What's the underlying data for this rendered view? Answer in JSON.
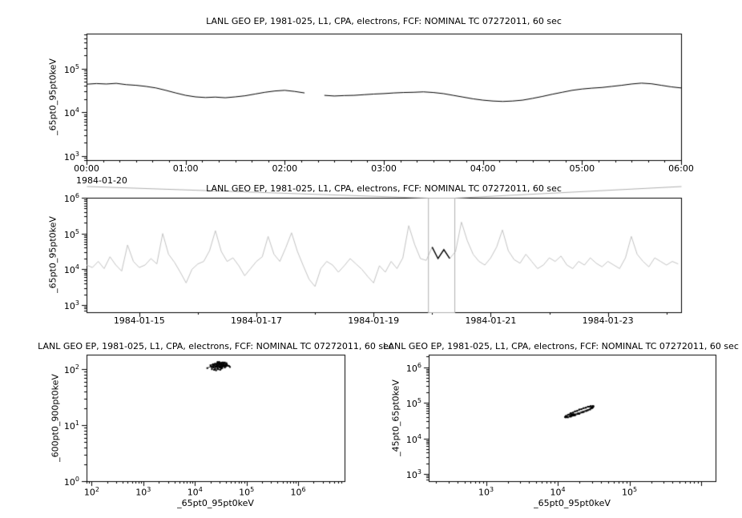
{
  "page": {
    "background": "#ffffff",
    "frame_color": "#000000",
    "context_line_color": "#c4c4c4",
    "selection_color": "#b0b0b0"
  },
  "chart_data": [
    {
      "id": "zoom-timeseries",
      "type": "line",
      "title": "LANL GEO EP, 1981-025, L1, CPA, electrons, FCF: NOMINAL TC 07272011, 60 sec",
      "ylabel": "_65pt0_95pt0keV",
      "y_scale": "log10",
      "x_scale": "hours",
      "y_range": [
        2.9,
        5.8
      ],
      "y_ticks_exp": [
        3,
        4,
        5
      ],
      "x_range": [
        0,
        6
      ],
      "x_minor_step": 0.1666667,
      "x_date_label": "1984-01-20",
      "x_ticks": [
        {
          "v": 0,
          "label": "00:00"
        },
        {
          "v": 1,
          "label": "01:00"
        },
        {
          "v": 2,
          "label": "02:00"
        },
        {
          "v": 3,
          "label": "03:00"
        },
        {
          "v": 4,
          "label": "04:00"
        },
        {
          "v": 5,
          "label": "05:00"
        },
        {
          "v": 6,
          "label": "06:00"
        }
      ],
      "line_color": "#000000",
      "series": {
        "x_start": 0.0,
        "x_step": 0.1,
        "log_values": [
          4.64,
          4.655,
          4.645,
          4.66,
          4.63,
          4.615,
          4.59,
          4.555,
          4.5,
          4.44,
          4.385,
          4.35,
          4.335,
          4.345,
          4.33,
          4.35,
          4.375,
          4.415,
          4.455,
          4.485,
          4.5,
          4.475,
          4.44,
          null,
          4.385,
          4.37,
          4.38,
          4.385,
          4.4,
          4.415,
          4.425,
          4.44,
          4.45,
          4.455,
          4.465,
          4.45,
          4.425,
          4.385,
          4.345,
          4.305,
          4.275,
          4.255,
          4.245,
          4.255,
          4.275,
          4.315,
          4.36,
          4.41,
          4.455,
          4.5,
          4.53,
          4.55,
          4.565,
          4.59,
          4.615,
          4.645,
          4.665,
          4.65,
          4.615,
          4.58,
          4.555
        ]
      }
    },
    {
      "id": "context-timeseries",
      "type": "line",
      "title": "LANL GEO EP, 1981-025, L1, CPA, electrons, FCF: NOMINAL TC 07272011, 60 sec",
      "ylabel": "_65pt0_95pt0keV",
      "y_scale": "log10",
      "x_scale": "days",
      "y_range": [
        2.8,
        6.0
      ],
      "y_ticks_exp": [
        3,
        4,
        5,
        6
      ],
      "x_range": [
        14.1,
        24.25
      ],
      "x_minor_step": 1,
      "x_ticks": [
        {
          "v": 15,
          "label": "1984-01-15"
        },
        {
          "v": 17,
          "label": "1984-01-17"
        },
        {
          "v": 19,
          "label": "1984-01-19"
        },
        {
          "v": 21,
          "label": "1984-01-21"
        },
        {
          "v": 23,
          "label": "1984-01-23"
        }
      ],
      "line_color": "#c4c4c4",
      "highlight_color": "#000000",
      "highlight_day_range": [
        19.95,
        20.35
      ],
      "selection_day_range": [
        19.93,
        20.38
      ],
      "series": {
        "x_start": 14.1,
        "x_step": 0.1,
        "log_values": [
          4.12,
          4.05,
          4.22,
          4.02,
          4.35,
          4.12,
          3.95,
          4.68,
          4.22,
          4.05,
          4.12,
          4.3,
          4.15,
          5.0,
          4.42,
          4.2,
          3.92,
          3.62,
          4.0,
          4.15,
          4.22,
          4.52,
          5.08,
          4.5,
          4.22,
          4.32,
          4.1,
          3.82,
          4.02,
          4.22,
          4.35,
          4.92,
          4.42,
          4.22,
          4.6,
          5.02,
          4.5,
          4.1,
          3.72,
          3.52,
          4.02,
          4.22,
          4.12,
          3.92,
          4.1,
          4.3,
          4.15,
          4.0,
          3.8,
          3.62,
          4.1,
          3.92,
          4.22,
          4.02,
          4.32,
          5.22,
          4.7,
          4.3,
          4.25,
          4.62,
          4.3,
          4.55,
          4.3,
          4.5,
          5.32,
          4.8,
          4.42,
          4.22,
          4.12,
          4.32,
          4.62,
          5.1,
          4.52,
          4.27,
          4.17,
          4.42,
          4.22,
          4.02,
          4.12,
          4.32,
          4.22,
          4.37,
          4.12,
          4.02,
          4.22,
          4.12,
          4.32,
          4.17,
          4.07,
          4.22,
          4.12,
          4.02,
          4.32,
          4.92,
          4.42,
          4.22,
          4.07,
          4.32,
          4.22,
          4.12,
          4.22,
          4.15
        ]
      }
    },
    {
      "id": "scatter-600-900",
      "type": "scatter",
      "title": "LANL GEO EP, 1981-025, L1, CPA, electrons, FCF: NOMINAL TC 07272011, 60 sec",
      "xlabel": "_65pt0_95pt0keV",
      "ylabel": "_600pt0_900pt0keV",
      "x_scale": "log10",
      "y_scale": "log10",
      "x_range": [
        1.9,
        6.9
      ],
      "x_ticks_exp": [
        2,
        3,
        4,
        5,
        6
      ],
      "y_range": [
        0,
        2.26
      ],
      "y_ticks_exp": [
        0,
        1,
        2
      ],
      "connect": true,
      "points_log10": [
        [
          4.24,
          2.02
        ],
        [
          4.31,
          2.05
        ],
        [
          4.33,
          2.0
        ],
        [
          4.35,
          2.06
        ],
        [
          4.36,
          2.03
        ],
        [
          4.38,
          2.07
        ],
        [
          4.39,
          2.01
        ],
        [
          4.4,
          2.05
        ],
        [
          4.41,
          2.09
        ],
        [
          4.42,
          2.04
        ],
        [
          4.43,
          2.07
        ],
        [
          4.44,
          2.02
        ],
        [
          4.45,
          2.08
        ],
        [
          4.46,
          2.05
        ],
        [
          4.47,
          2.1
        ],
        [
          4.48,
          2.04
        ],
        [
          4.49,
          2.07
        ],
        [
          4.5,
          2.03
        ],
        [
          4.51,
          2.09
        ],
        [
          4.52,
          2.06
        ],
        [
          4.53,
          2.02
        ],
        [
          4.54,
          2.08
        ],
        [
          4.55,
          2.05
        ],
        [
          4.56,
          2.1
        ],
        [
          4.57,
          2.06
        ],
        [
          4.58,
          2.03
        ],
        [
          4.59,
          2.08
        ],
        [
          4.6,
          2.05
        ],
        [
          4.61,
          2.11
        ],
        [
          4.62,
          2.07
        ],
        [
          4.37,
          1.99
        ],
        [
          4.41,
          1.98
        ],
        [
          4.45,
          2.0
        ],
        [
          4.49,
          1.99
        ],
        [
          4.53,
          2.12
        ],
        [
          4.47,
          2.13
        ],
        [
          4.43,
          2.11
        ],
        [
          4.55,
          2.12
        ],
        [
          4.35,
          2.09
        ],
        [
          4.3,
          2.07
        ],
        [
          4.58,
          2.12
        ],
        [
          4.62,
          2.09
        ],
        [
          4.66,
          2.06
        ],
        [
          4.33,
          2.04
        ],
        [
          4.39,
          2.1
        ],
        [
          4.51,
          2.01
        ],
        [
          4.57,
          2.11
        ],
        [
          4.68,
          2.04
        ],
        [
          4.44,
          2.13
        ],
        [
          4.48,
          2.09
        ]
      ]
    },
    {
      "id": "scatter-45-65",
      "type": "scatter",
      "title": "LANL GEO EP, 1981-025, L1, CPA, electrons, FCF: NOMINAL TC 07272011, 60 sec",
      "xlabel": "_65pt0_95pt0keV",
      "ylabel": "_45pt0_65pt0keV",
      "x_scale": "log10",
      "y_scale": "log10",
      "x_range": [
        2.2,
        6.2
      ],
      "x_ticks_exp": [
        3,
        4,
        5
      ],
      "y_range": [
        2.8,
        6.35
      ],
      "y_ticks_exp": [
        3,
        4,
        5,
        6
      ],
      "connect": true,
      "points_log10": [
        [
          4.5,
          4.9
        ],
        [
          4.49,
          4.91
        ],
        [
          4.46,
          4.91
        ],
        [
          4.42,
          4.89
        ],
        [
          4.36,
          4.85
        ],
        [
          4.3,
          4.81
        ],
        [
          4.24,
          4.76
        ],
        [
          4.18,
          4.71
        ],
        [
          4.14,
          4.66
        ],
        [
          4.11,
          4.63
        ],
        [
          4.1,
          4.6
        ],
        [
          4.11,
          4.59
        ],
        [
          4.14,
          4.59
        ],
        [
          4.18,
          4.61
        ],
        [
          4.24,
          4.65
        ],
        [
          4.3,
          4.69
        ],
        [
          4.36,
          4.74
        ],
        [
          4.42,
          4.79
        ],
        [
          4.46,
          4.84
        ],
        [
          4.49,
          4.87
        ],
        [
          4.47,
          4.88
        ],
        [
          4.44,
          4.89
        ],
        [
          4.39,
          4.86
        ],
        [
          4.33,
          4.82
        ],
        [
          4.27,
          4.77
        ],
        [
          4.21,
          4.72
        ],
        [
          4.16,
          4.67
        ],
        [
          4.12,
          4.62
        ],
        [
          4.11,
          4.6
        ],
        [
          4.13,
          4.6
        ],
        [
          4.17,
          4.62
        ],
        [
          4.22,
          4.65
        ],
        [
          4.28,
          4.69
        ],
        [
          4.34,
          4.73
        ],
        [
          4.4,
          4.77
        ],
        [
          4.45,
          4.81
        ],
        [
          4.48,
          4.85
        ],
        [
          4.2,
          4.66
        ],
        [
          4.23,
          4.65
        ],
        [
          4.19,
          4.67
        ],
        [
          4.22,
          4.68
        ],
        [
          4.21,
          4.64
        ],
        [
          4.24,
          4.66
        ],
        [
          4.18,
          4.65
        ],
        [
          4.2,
          4.67
        ],
        [
          4.23,
          4.67
        ],
        [
          4.19,
          4.63
        ]
      ]
    }
  ]
}
